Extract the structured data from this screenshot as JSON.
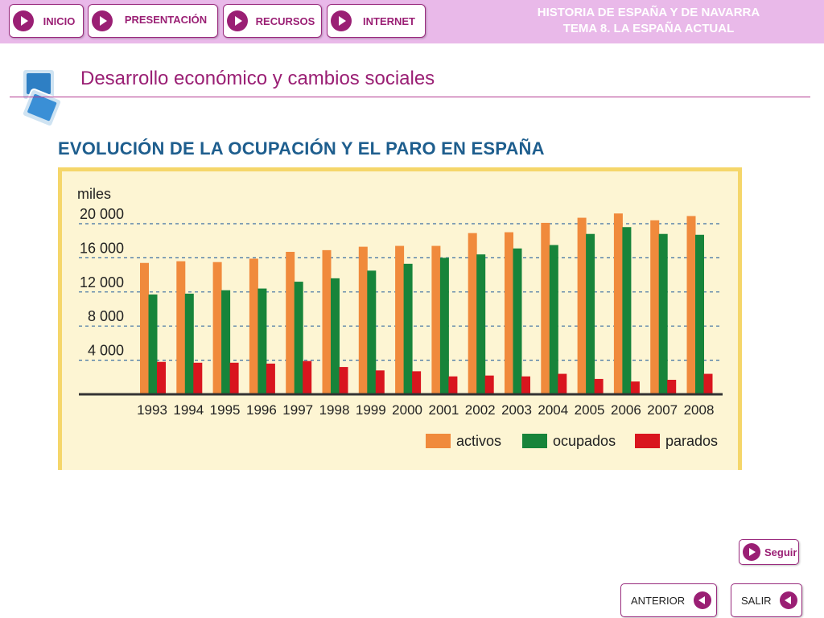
{
  "nav": {
    "inicio": "INICIO",
    "presentacion": "PRESENTACIÓN",
    "recursos": "RECURSOS",
    "internet": "INTERNET"
  },
  "header": {
    "line1": "HISTORIA DE ESPAÑA Y DE NAVARRA",
    "line2": "TEMA 8. LA ESPAÑA ACTUAL"
  },
  "page": {
    "title": "Desarrollo económico y cambios sociales"
  },
  "footer": {
    "seguir": "Seguir",
    "anterior": "ANTERIOR",
    "salir": "SALIR"
  },
  "colors": {
    "accent": "#9a1f74",
    "topbar": "#e9b9e9",
    "activos": "#f08a3c",
    "ocupados": "#17843a",
    "parados": "#d9151e",
    "chart_bg": "#fdf5d3",
    "chart_border": "#f5d66a"
  },
  "chart_data": {
    "type": "bar",
    "title": "EVOLUCIÓN DE LA OCUPACIÓN Y EL PARO EN ESPAÑA",
    "ylabel": "miles",
    "xlabel": "",
    "ylim": [
      0,
      21000
    ],
    "yticks": [
      4000,
      8000,
      12000,
      16000,
      20000
    ],
    "ytick_labels": [
      "4 000",
      "8 000",
      "12 000",
      "16 000",
      "20 000"
    ],
    "grid": true,
    "legend": "bottom-right",
    "categories": [
      "1993",
      "1994",
      "1995",
      "1996",
      "1997",
      "1998",
      "1999",
      "2000",
      "2001",
      "2002",
      "2003",
      "2004",
      "2005",
      "2006",
      "2007",
      "2008"
    ],
    "series": [
      {
        "name": "activos",
        "color": "#f08a3c",
        "values": [
          15400,
          15600,
          15500,
          15900,
          16700,
          16900,
          17300,
          17400,
          17400,
          18900,
          19000,
          20100,
          20700,
          21200,
          20400,
          20900
        ]
      },
      {
        "name": "ocupados",
        "color": "#17843a",
        "values": [
          11700,
          11800,
          12200,
          12400,
          13200,
          13600,
          14500,
          15300,
          16000,
          16400,
          17100,
          17500,
          18800,
          19600,
          18800,
          18700
        ]
      },
      {
        "name": "parados",
        "color": "#d9151e",
        "values": [
          3800,
          3700,
          3700,
          3600,
          3900,
          3200,
          2800,
          2700,
          2100,
          2200,
          2100,
          2400,
          1800,
          1500,
          1700,
          2400
        ]
      }
    ]
  }
}
